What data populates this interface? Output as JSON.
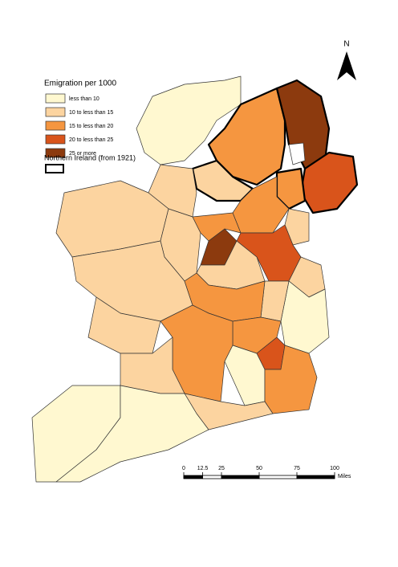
{
  "legend": {
    "title": "Emigration per 1000",
    "items": [
      {
        "label": "less than 10",
        "color": "#fff8d0"
      },
      {
        "label": "10 to less than 15",
        "color": "#fcd4a0"
      },
      {
        "label": "15 to less than 20",
        "color": "#f59640"
      },
      {
        "label": "20 to less than 25",
        "color": "#d9541b"
      },
      {
        "label": "25 or more",
        "color": "#8c3a0e"
      }
    ],
    "boundary_label": "Northern Ireland (from 1921)"
  },
  "north_arrow": "N",
  "scale_bar": {
    "ticks": [
      0,
      12.5,
      25,
      50,
      75,
      100
    ],
    "unit": "Miles"
  }
}
